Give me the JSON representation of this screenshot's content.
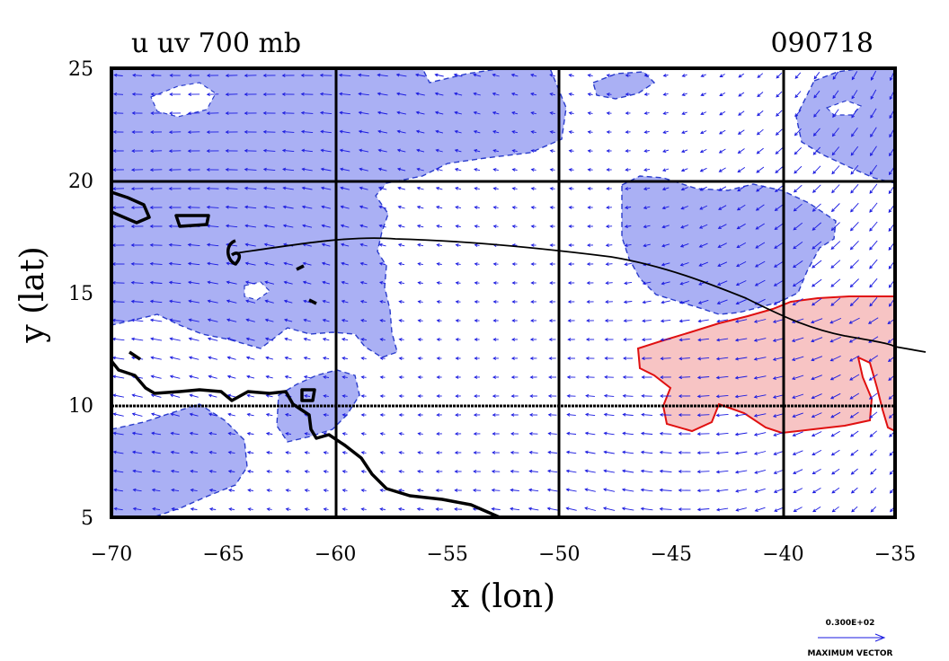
{
  "title_left": "u uv 700 mb",
  "title_right": "090718",
  "xlabel": "x (lon)",
  "ylabel": "y (lat)",
  "x_ticks": [
    "−70",
    "−65",
    "−60",
    "−55",
    "−50",
    "−45",
    "−40",
    "−35"
  ],
  "y_ticks": [
    "25",
    "20",
    "15",
    "10",
    "5"
  ],
  "vector_key": {
    "magnitude": "0.300E+02",
    "label": "MAXIMUM VECTOR"
  },
  "colors": {
    "negative_fill": "#aab0f4",
    "negative_contour": "#2a3ccc",
    "positive_fill": "#f7c4c4",
    "positive_contour": "#e01010",
    "vectors": "#1a1ae0",
    "grid": "#000000"
  },
  "chart_data": {
    "type": "map",
    "variable": "u uv 700 mb",
    "x_range": [
      -70,
      -35
    ],
    "y_range": [
      5,
      25
    ],
    "gridlines": {
      "lon": [
        -60,
        -50,
        -40
      ],
      "lat": [
        10,
        20
      ]
    }
  }
}
